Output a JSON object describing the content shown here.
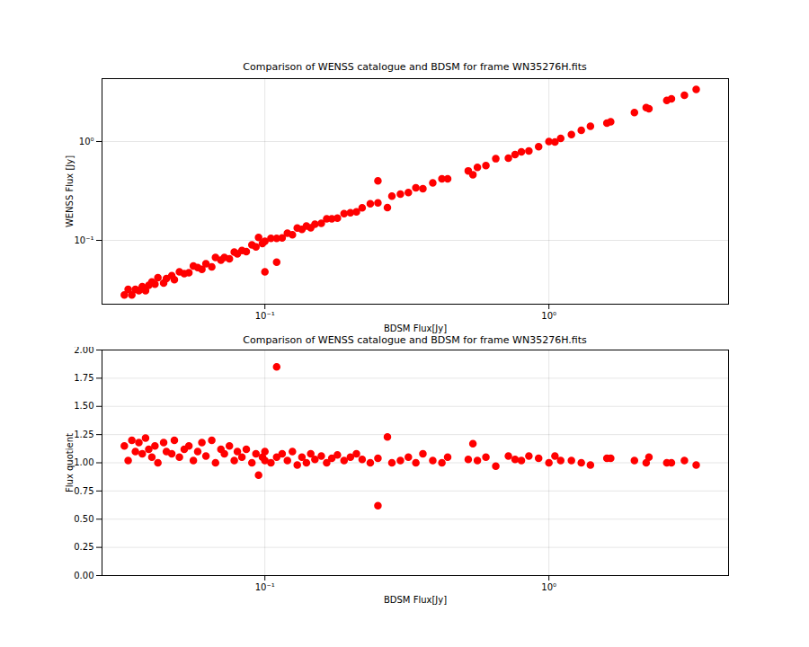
{
  "chart_data": [
    {
      "type": "scatter",
      "title": "Comparison of WENSS catalogue and BDSM for frame WN35276H.fits",
      "x_label": "BDSM Flux[Jy]",
      "y_label": "WENSS Flux [Jy]",
      "x": [
        0.032,
        0.033,
        0.034,
        0.035,
        0.036,
        0.037,
        0.038,
        0.039,
        0.04,
        0.041,
        0.042,
        0.044,
        0.045,
        0.047,
        0.048,
        0.05,
        0.052,
        0.054,
        0.056,
        0.058,
        0.06,
        0.062,
        0.065,
        0.067,
        0.07,
        0.072,
        0.075,
        0.078,
        0.08,
        0.083,
        0.086,
        0.09,
        0.093,
        0.095,
        0.098,
        0.1,
        0.1,
        0.105,
        0.11,
        0.11,
        0.115,
        0.12,
        0.125,
        0.13,
        0.135,
        0.14,
        0.145,
        0.15,
        0.158,
        0.165,
        0.172,
        0.18,
        0.19,
        0.2,
        0.21,
        0.22,
        0.235,
        0.25,
        0.25,
        0.27,
        0.28,
        0.3,
        0.32,
        0.34,
        0.36,
        0.39,
        0.42,
        0.44,
        0.52,
        0.54,
        0.56,
        0.6,
        0.65,
        0.72,
        0.76,
        0.8,
        0.85,
        0.92,
        1.0,
        1.05,
        1.1,
        1.2,
        1.3,
        1.4,
        1.6,
        1.65,
        2.0,
        2.2,
        2.25,
        2.6,
        2.7,
        3.0,
        3.3
      ],
      "values": [
        0.028,
        0.032,
        0.028,
        0.032,
        0.031,
        0.034,
        0.031,
        0.035,
        0.038,
        0.036,
        0.042,
        0.037,
        0.041,
        0.044,
        0.04,
        0.048,
        0.046,
        0.047,
        0.055,
        0.053,
        0.051,
        0.058,
        0.054,
        0.067,
        0.063,
        0.067,
        0.065,
        0.076,
        0.073,
        0.079,
        0.077,
        0.09,
        0.086,
        0.107,
        0.093,
        0.098,
        0.048,
        0.105,
        0.06,
        0.105,
        0.106,
        0.118,
        0.114,
        0.133,
        0.129,
        0.14,
        0.134,
        0.146,
        0.149,
        0.165,
        0.165,
        0.168,
        0.186,
        0.19,
        0.194,
        0.214,
        0.235,
        0.4,
        0.24,
        0.215,
        0.28,
        0.294,
        0.305,
        0.34,
        0.333,
        0.382,
        0.42,
        0.419,
        0.505,
        0.462,
        0.549,
        0.571,
        0.67,
        0.679,
        0.738,
        0.784,
        0.802,
        0.885,
        1.0,
        0.991,
        1.078,
        1.176,
        1.3,
        1.429,
        1.538,
        1.587,
        1.961,
        2.2,
        2.143,
        2.6,
        2.7,
        2.941,
        3.367
      ],
      "xlim": [
        0.0267,
        4.29
      ],
      "ylim": [
        0.0226,
        4.33
      ],
      "xticks": [
        {
          "value": 0.1,
          "label": "10⁻¹"
        },
        {
          "value": 1,
          "label": "10⁰"
        }
      ],
      "yticks": [
        {
          "value": 0.1,
          "label": "10⁻¹"
        },
        {
          "value": 1,
          "label": "10⁰"
        }
      ],
      "log": true,
      "grid": true,
      "color": "#ff0000",
      "marker": "circle"
    },
    {
      "type": "scatter",
      "title": "Comparison of WENSS catalogue and BDSM for frame WN35276H.fits",
      "x_label": "BDSM Flux[Jy]",
      "y_label": "Flux quotient",
      "x": [
        0.032,
        0.033,
        0.034,
        0.035,
        0.036,
        0.037,
        0.038,
        0.039,
        0.04,
        0.041,
        0.042,
        0.044,
        0.045,
        0.047,
        0.048,
        0.05,
        0.052,
        0.054,
        0.056,
        0.058,
        0.06,
        0.062,
        0.065,
        0.067,
        0.07,
        0.072,
        0.075,
        0.078,
        0.08,
        0.083,
        0.086,
        0.09,
        0.093,
        0.095,
        0.098,
        0.1,
        0.1,
        0.105,
        0.11,
        0.11,
        0.115,
        0.12,
        0.125,
        0.13,
        0.135,
        0.14,
        0.145,
        0.15,
        0.158,
        0.165,
        0.172,
        0.18,
        0.19,
        0.2,
        0.21,
        0.22,
        0.235,
        0.25,
        0.25,
        0.27,
        0.28,
        0.3,
        0.32,
        0.34,
        0.36,
        0.39,
        0.42,
        0.44,
        0.52,
        0.54,
        0.56,
        0.6,
        0.65,
        0.72,
        0.76,
        0.8,
        0.85,
        0.92,
        1.0,
        1.05,
        1.1,
        1.2,
        1.3,
        1.4,
        1.6,
        1.65,
        2.0,
        2.2,
        2.25,
        2.6,
        2.7,
        3.0,
        3.3
      ],
      "values": [
        1.15,
        1.02,
        1.2,
        1.1,
        1.18,
        1.08,
        1.22,
        1.12,
        1.05,
        1.15,
        1.0,
        1.18,
        1.1,
        1.08,
        1.2,
        1.05,
        1.12,
        1.15,
        1.02,
        1.1,
        1.18,
        1.06,
        1.2,
        1.0,
        1.12,
        1.08,
        1.15,
        1.02,
        1.1,
        1.05,
        1.12,
        1.0,
        1.08,
        0.89,
        1.05,
        1.02,
        1.1,
        1.0,
        1.85,
        1.05,
        1.08,
        1.02,
        1.1,
        0.98,
        1.05,
        1.0,
        1.08,
        1.03,
        1.06,
        1.0,
        1.04,
        1.07,
        1.02,
        1.05,
        1.08,
        1.03,
        1.0,
        0.62,
        1.04,
        1.23,
        1.0,
        1.02,
        1.05,
        1.0,
        1.08,
        1.02,
        1.0,
        1.05,
        1.03,
        1.17,
        1.02,
        1.05,
        0.97,
        1.06,
        1.03,
        1.02,
        1.06,
        1.04,
        1.0,
        1.06,
        1.02,
        1.02,
        1.0,
        0.98,
        1.04,
        1.04,
        1.02,
        1.0,
        1.05,
        1.0,
        1.0,
        1.02,
        0.98
      ],
      "xlim": [
        0.0267,
        4.29
      ],
      "ylim": [
        0,
        2
      ],
      "xticks": [
        {
          "value": 0.1,
          "label": "10⁻¹"
        },
        {
          "value": 1,
          "label": "10⁰"
        }
      ],
      "yticks": [
        {
          "value": 0,
          "label": "0.00"
        },
        {
          "value": 0.25,
          "label": "0.25"
        },
        {
          "value": 0.5,
          "label": "0.50"
        },
        {
          "value": 0.75,
          "label": "0.75"
        },
        {
          "value": 1,
          "label": "1.00"
        },
        {
          "value": 1.25,
          "label": "1.25"
        },
        {
          "value": 1.5,
          "label": "1.50"
        },
        {
          "value": 1.75,
          "label": "1.75"
        },
        {
          "value": 2,
          "label": "2.00"
        }
      ],
      "log": "x",
      "grid": true,
      "color": "#ff0000",
      "marker": "circle"
    }
  ]
}
